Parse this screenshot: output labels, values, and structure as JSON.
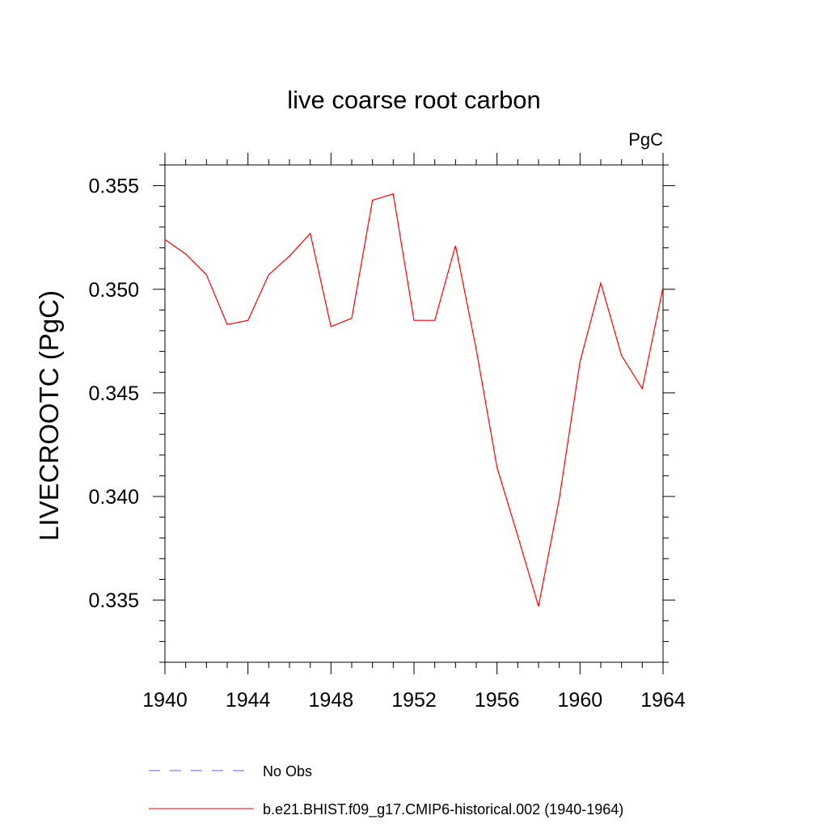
{
  "chart_data": {
    "type": "line",
    "title": "live coarse root carbon",
    "units_label": "PgC",
    "xlabel": "",
    "ylabel": "LIVECROOTC  (PgC)",
    "xlim": [
      1940,
      1964
    ],
    "ylim": [
      0.332,
      0.356
    ],
    "x_ticks": [
      1940,
      1944,
      1948,
      1952,
      1956,
      1960,
      1964
    ],
    "x_tick_labels": [
      "1940",
      "1944",
      "1948",
      "1952",
      "1956",
      "1960",
      "1964"
    ],
    "y_ticks": [
      0.335,
      0.34,
      0.345,
      0.35,
      0.355
    ],
    "y_tick_labels": [
      "0.335",
      "0.340",
      "0.345",
      "0.350",
      "0.355"
    ],
    "x_minor_step": 1,
    "y_minor_step": 0.001,
    "grid": false,
    "legend_position": "bottom",
    "series": [
      {
        "name": "No Obs",
        "color": "#6a5acd",
        "dash": "dashed",
        "x": [],
        "values": []
      },
      {
        "name": "b.e21.BHIST.f09_g17.CMIP6-historical.002 (1940-1964)",
        "color": "#ff0000",
        "dash": "solid",
        "x": [
          1940,
          1941,
          1942,
          1943,
          1944,
          1945,
          1946,
          1947,
          1948,
          1949,
          1950,
          1951,
          1952,
          1953,
          1954,
          1955,
          1956,
          1957,
          1958,
          1959,
          1960,
          1961,
          1962,
          1963,
          1964
        ],
        "values": [
          0.3524,
          0.3517,
          0.3507,
          0.3483,
          0.3485,
          0.3507,
          0.3516,
          0.3527,
          0.3482,
          0.3486,
          0.3543,
          0.3546,
          0.3485,
          0.3485,
          0.3521,
          0.3471,
          0.3414,
          0.3381,
          0.3347,
          0.3399,
          0.3465,
          0.3503,
          0.3468,
          0.3452,
          0.3501
        ]
      }
    ]
  }
}
